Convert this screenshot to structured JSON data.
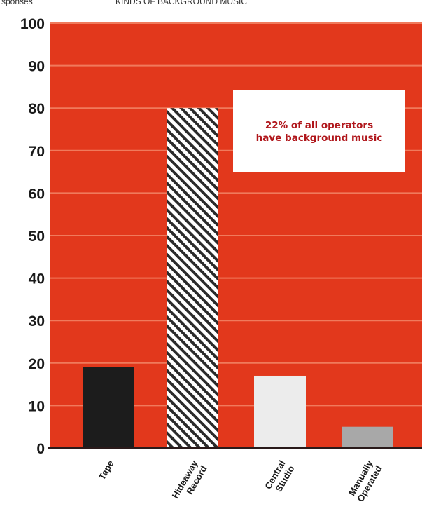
{
  "header": {
    "left_fragment": "sponses",
    "center_fragment": "KINDS OF BACKGROUND MUSIC"
  },
  "colors": {
    "plot_background": "#e2381c",
    "gridline": "#f07a5c",
    "tape": "#1c1c1c",
    "hideaway_stripe": "#2b2b2b",
    "hideaway_base": "#ffffff",
    "central_studio": "#ececec",
    "manually_operated": "#a8a8a8",
    "annotation_box": "#ffffff",
    "annotation_text": "#b0161b"
  },
  "chart_data": {
    "type": "bar",
    "categories": [
      "Tape",
      "Hideaway Record",
      "Central Studio",
      "Manually Operated"
    ],
    "category_lines": [
      [
        "Tape"
      ],
      [
        "Hideaway",
        "Record"
      ],
      [
        "Central",
        "Studio"
      ],
      [
        "Manually",
        "Operated"
      ]
    ],
    "values": [
      19,
      80,
      17,
      5
    ],
    "bar_styles": [
      "tape",
      "hideaway",
      "central_studio",
      "manually_operated"
    ],
    "ylim": [
      0,
      100
    ],
    "yticks": [
      0,
      10,
      20,
      30,
      40,
      50,
      60,
      70,
      80,
      90,
      100
    ],
    "grid": true,
    "annotation": {
      "lines": [
        "22% of all operators",
        "have background music"
      ]
    }
  }
}
